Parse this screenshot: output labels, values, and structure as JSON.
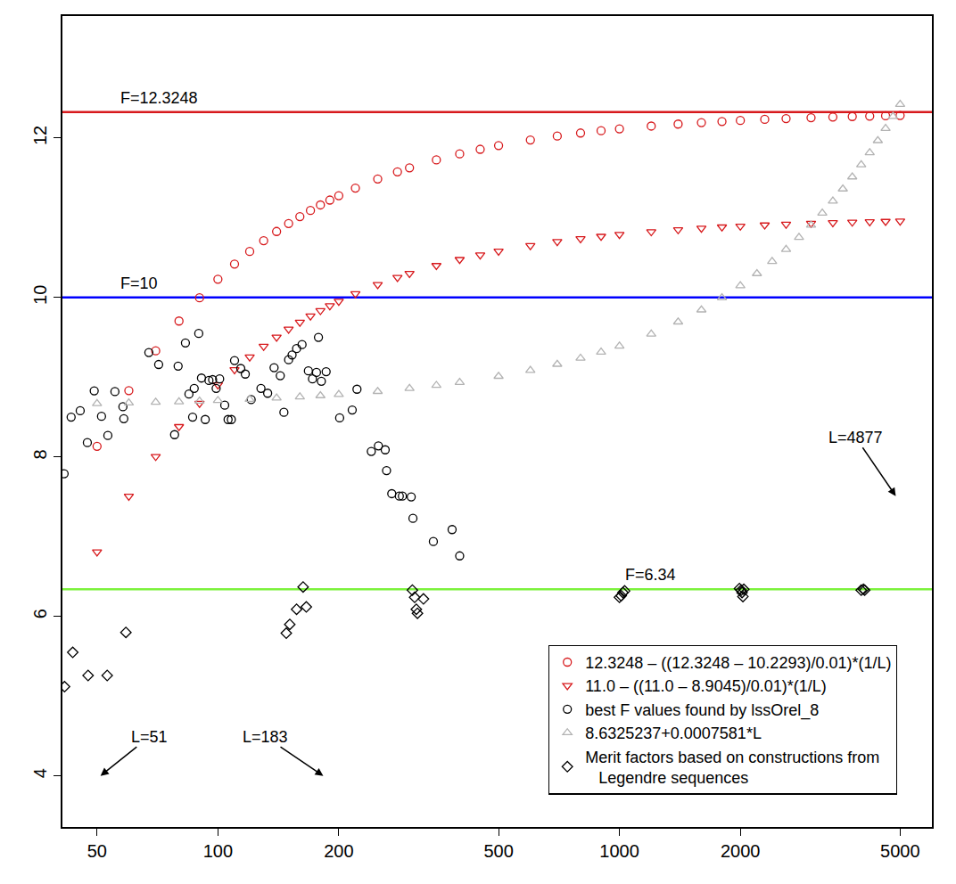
{
  "chart_data": {
    "type": "scatter",
    "log": "x",
    "grid": false,
    "legend": "bottom right",
    "xlim": [
      41,
      6000
    ],
    "ylim": [
      3.36,
      13.53
    ],
    "xticks": [
      50,
      100,
      200,
      500,
      1000,
      2000,
      5000
    ],
    "yticks": [
      4,
      6,
      8,
      10,
      12
    ],
    "hlines": [
      {
        "value": 12.3248,
        "label": "F=12.3248",
        "color": "#d7191c"
      },
      {
        "value": 10,
        "label": "F=10",
        "color": "#0000ff"
      },
      {
        "value": 6.34,
        "label": "F=6.34",
        "color": "#7cf23c"
      }
    ],
    "vlines": [
      51,
      183,
      4877
    ],
    "annotations": [
      {
        "text": "L=51",
        "x": 51
      },
      {
        "text": "L=183",
        "x": 183
      },
      {
        "text": "L=4877",
        "x": 4877
      }
    ],
    "series": [
      {
        "name": "12.3248 – ((12.3248 – 10.2293)/0.01)*(1/L)",
        "color": "#d7191c",
        "marker": "circle-open",
        "x": [
          50,
          60,
          70,
          80,
          90,
          100,
          110,
          120,
          130,
          140,
          150,
          160,
          170,
          180,
          190,
          200,
          220,
          250,
          280,
          300,
          350,
          400,
          450,
          500,
          600,
          700,
          800,
          900,
          1000,
          1200,
          1400,
          1600,
          1800,
          2000,
          2300,
          2600,
          3000,
          3400,
          3800,
          4200,
          4600,
          5000
        ],
        "values": [
          8.134,
          8.832,
          9.331,
          9.705,
          9.996,
          10.229,
          10.42,
          10.578,
          10.713,
          10.828,
          10.928,
          11.015,
          11.092,
          11.161,
          11.222,
          11.277,
          11.372,
          11.487,
          11.576,
          11.626,
          11.726,
          11.801,
          11.859,
          11.906,
          11.976,
          12.025,
          12.063,
          12.092,
          12.115,
          12.15,
          12.175,
          12.194,
          12.208,
          12.22,
          12.234,
          12.244,
          12.255,
          12.263,
          12.27,
          12.275,
          12.279,
          12.283
        ]
      },
      {
        "name": "11.0 – ((11.0 – 8.9045)/0.01)*(1/L)",
        "color": "#d7191c",
        "marker": "triangle-down-open",
        "x": [
          50,
          60,
          70,
          80,
          90,
          100,
          110,
          120,
          130,
          140,
          150,
          160,
          170,
          180,
          190,
          200,
          220,
          250,
          280,
          300,
          350,
          400,
          450,
          500,
          600,
          700,
          800,
          900,
          1000,
          1200,
          1400,
          1600,
          1800,
          2000,
          2300,
          2600,
          3000,
          3400,
          3800,
          4200,
          4600,
          5000
        ],
        "values": [
          6.809,
          7.508,
          8.006,
          8.381,
          8.672,
          8.905,
          9.095,
          9.254,
          9.388,
          9.503,
          9.603,
          9.69,
          9.767,
          9.836,
          9.897,
          9.952,
          10.048,
          10.162,
          10.252,
          10.302,
          10.401,
          10.476,
          10.534,
          10.581,
          10.651,
          10.701,
          10.738,
          10.767,
          10.79,
          10.825,
          10.85,
          10.869,
          10.884,
          10.895,
          10.909,
          10.919,
          10.93,
          10.938,
          10.945,
          10.95,
          10.954,
          10.958
        ]
      },
      {
        "name": "best F values found by lssOrel_8",
        "color": "#000000",
        "marker": "circle-open",
        "x": [
          41.4,
          43.1,
          45.4,
          47.3,
          49.2,
          51.3,
          53.2,
          55.4,
          58.0,
          58.3,
          67.3,
          71.2,
          78.0,
          79.6,
          83.0,
          84.7,
          86.5,
          87.3,
          89.6,
          91,
          93,
          95,
          97,
          99,
          101,
          104,
          106,
          108,
          110,
          114,
          117,
          121,
          128,
          133,
          138,
          143,
          146,
          150,
          153,
          157,
          162,
          168,
          172,
          176,
          178,
          181,
          186,
          201,
          216,
          222,
          241,
          251,
          261,
          263,
          271,
          283,
          288,
          303,
          306,
          344,
          383,
          400
        ],
        "values": [
          7.79,
          8.5,
          8.58,
          8.18,
          8.83,
          8.51,
          8.27,
          8.82,
          8.63,
          8.48,
          9.31,
          9.16,
          8.28,
          9.14,
          9.43,
          8.79,
          8.5,
          8.86,
          9.55,
          8.99,
          8.47,
          8.96,
          8.97,
          8.86,
          8.98,
          8.65,
          8.47,
          8.47,
          9.21,
          9.11,
          9.04,
          8.72,
          8.86,
          8.8,
          9.12,
          9.02,
          8.56,
          9.22,
          9.28,
          9.36,
          9.41,
          9.08,
          8.98,
          9.06,
          9.5,
          8.95,
          9.07,
          8.49,
          8.59,
          8.85,
          8.07,
          8.14,
          8.09,
          7.83,
          7.54,
          7.51,
          7.51,
          7.5,
          7.23,
          6.94,
          7.09,
          6.76
        ]
      },
      {
        "name": "8.6325237+0.0007581*L",
        "color": "#b3b3b3",
        "marker": "triangle-up-open",
        "x": [
          50,
          60,
          70,
          80,
          90,
          100,
          120,
          140,
          160,
          180,
          200,
          250,
          300,
          350,
          400,
          500,
          600,
          700,
          800,
          900,
          1000,
          1200,
          1400,
          1600,
          1800,
          2000,
          2200,
          2400,
          2600,
          2800,
          3000,
          3200,
          3400,
          3600,
          3800,
          4000,
          4200,
          4400,
          4600,
          4800,
          5000
        ],
        "values": [
          8.67,
          8.678,
          8.686,
          8.693,
          8.701,
          8.708,
          8.724,
          8.739,
          8.754,
          8.769,
          8.784,
          8.822,
          8.86,
          8.898,
          8.936,
          9.012,
          9.087,
          9.163,
          9.239,
          9.315,
          9.391,
          9.542,
          9.694,
          9.845,
          9.997,
          10.149,
          10.3,
          10.452,
          10.604,
          10.755,
          10.907,
          11.058,
          11.21,
          11.362,
          11.513,
          11.665,
          11.816,
          11.968,
          12.12,
          12.271,
          12.423
        ]
      },
      {
        "name": "Merit factors based on constructions from\nLegendre sequences",
        "color": "#000000",
        "marker": "diamond-open",
        "x": [
          41.5,
          43.5,
          47.5,
          53,
          59,
          148,
          151,
          157,
          163,
          166,
          305,
          309,
          312,
          314,
          325,
          1000,
          1010,
          1020,
          1030,
          1990,
          2010,
          2020,
          2030,
          2040,
          4000,
          4050,
          4080
        ],
        "values": [
          5.12,
          5.55,
          5.26,
          5.26,
          5.8,
          5.79,
          5.9,
          6.09,
          6.37,
          6.12,
          6.33,
          6.24,
          6.09,
          6.04,
          6.22,
          6.24,
          6.26,
          6.3,
          6.32,
          6.35,
          6.33,
          6.3,
          6.25,
          6.34,
          6.33,
          6.34,
          6.33
        ]
      }
    ]
  }
}
